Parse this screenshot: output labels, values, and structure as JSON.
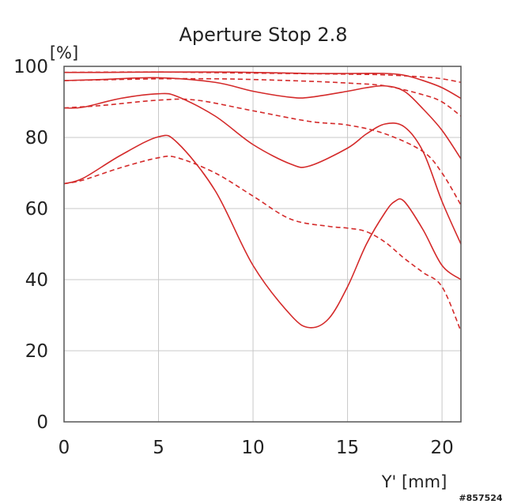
{
  "chart_data": {
    "type": "line",
    "title": "Aperture Stop 2.8",
    "ylabel": "[%]",
    "xlabel": "Y' [mm]",
    "xlim": [
      0,
      21
    ],
    "ylim": [
      0,
      100
    ],
    "x_ticks": [
      0,
      5,
      10,
      15,
      20
    ],
    "y_ticks": [
      0,
      20,
      40,
      60,
      80,
      100
    ],
    "grid": true,
    "line_color": "#d42a2a",
    "series": [
      {
        "style": "solid",
        "x": [
          0,
          2,
          5,
          8,
          10,
          13,
          15,
          17,
          18,
          19,
          20,
          21
        ],
        "y": [
          98.3,
          98.3,
          98.4,
          98.4,
          98.3,
          98,
          98,
          98,
          97.5,
          96,
          94,
          91
        ]
      },
      {
        "style": "dashed",
        "x": [
          0,
          5,
          10,
          15,
          17,
          19,
          20,
          21
        ],
        "y": [
          98.3,
          98.4,
          98.1,
          97.8,
          97.6,
          97,
          96.5,
          95.5
        ]
      },
      {
        "style": "solid",
        "x": [
          0,
          2,
          5,
          8,
          10,
          12,
          13,
          15,
          16,
          17,
          18,
          19,
          20,
          21
        ],
        "y": [
          96,
          96.3,
          96.8,
          95.5,
          93,
          91.3,
          91.3,
          93,
          94,
          94.5,
          93,
          88,
          82,
          74
        ]
      },
      {
        "style": "dashed",
        "x": [
          0,
          2,
          5,
          8,
          10,
          13,
          15,
          17,
          19,
          20,
          21
        ],
        "y": [
          96,
          96.2,
          96.5,
          96.5,
          96.3,
          95.8,
          95.3,
          94.5,
          92,
          90,
          86
        ]
      },
      {
        "style": "solid",
        "x": [
          0,
          1,
          3,
          5,
          6,
          8,
          10,
          12,
          13,
          15,
          16,
          17,
          18,
          19,
          20,
          21
        ],
        "y": [
          88.3,
          88.5,
          91,
          92.3,
          91.5,
          86,
          78,
          72.5,
          72,
          77,
          81,
          83.8,
          83,
          76,
          62,
          50
        ]
      },
      {
        "style": "dashed",
        "x": [
          0,
          2,
          5,
          7,
          10,
          13,
          15,
          17,
          19,
          20,
          21
        ],
        "y": [
          88.3,
          89,
          90.5,
          90.5,
          87.5,
          84.5,
          83.5,
          81,
          76,
          70,
          61
        ]
      },
      {
        "style": "solid",
        "x": [
          0,
          1,
          3,
          5,
          6,
          8,
          10,
          12,
          13,
          14,
          15,
          16,
          17,
          17.5,
          18,
          19,
          20,
          21
        ],
        "y": [
          67,
          68.5,
          75,
          80.2,
          78.5,
          65,
          44,
          30,
          26.5,
          29,
          38,
          50,
          59,
          62,
          62,
          54,
          44,
          40
        ]
      },
      {
        "style": "dashed",
        "x": [
          0,
          1,
          3,
          5,
          6,
          8,
          10,
          12,
          14,
          15,
          16,
          17,
          18,
          19,
          20,
          21
        ],
        "y": [
          67,
          68,
          71.5,
          74.3,
          74.3,
          70,
          63.5,
          57,
          55,
          54.5,
          53.5,
          50.5,
          46,
          42,
          38,
          25.5
        ]
      }
    ]
  },
  "watermark": "#857524"
}
